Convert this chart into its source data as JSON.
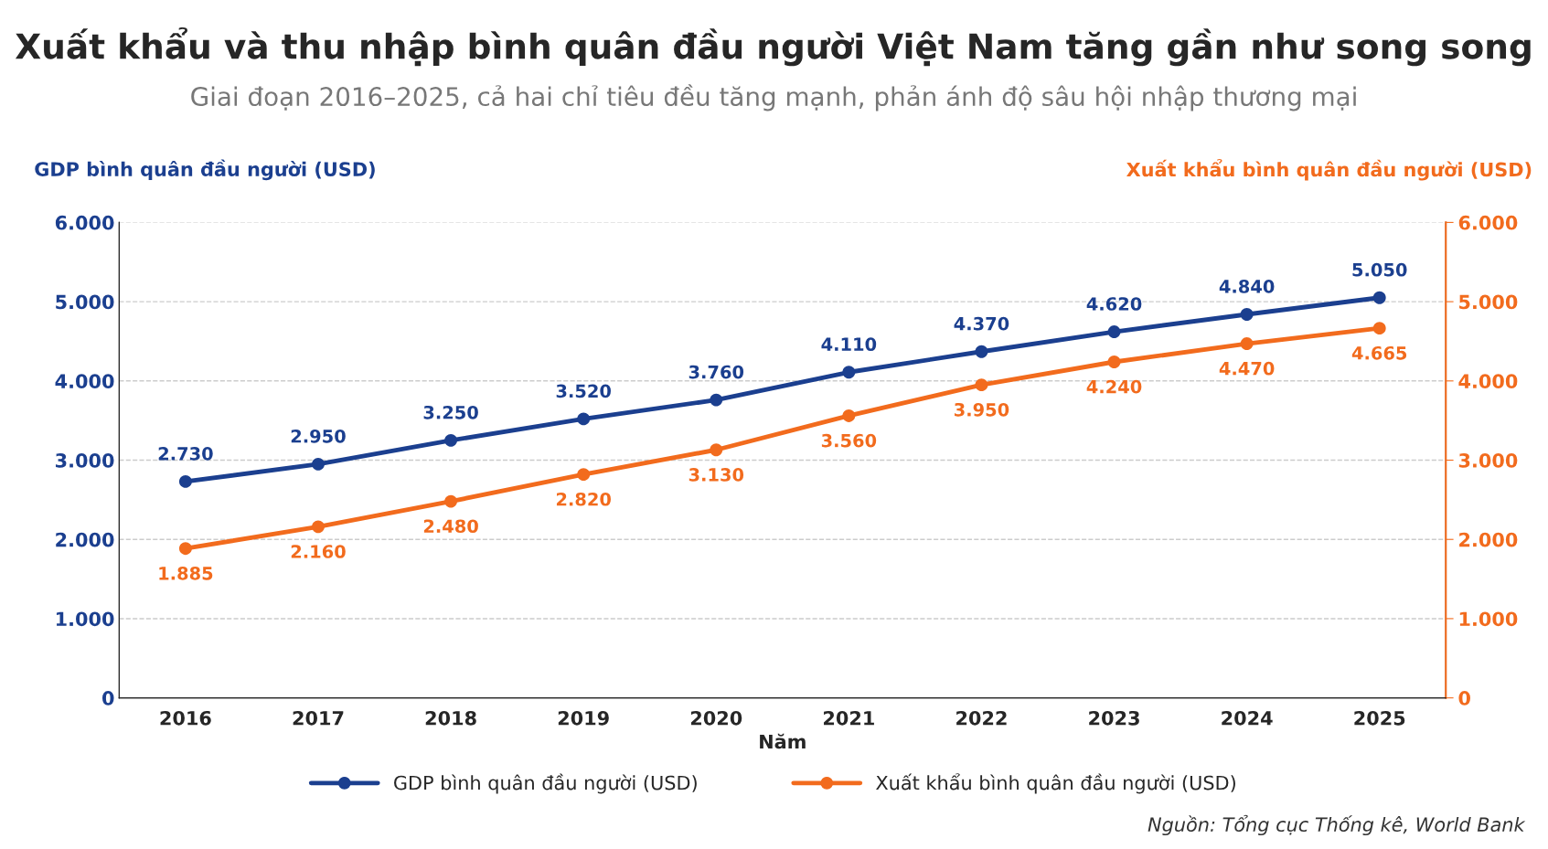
{
  "chart_data": {
    "type": "line",
    "title": "Xuất khẩu và thu nhập bình quân đầu người Việt Nam tăng gần như song song",
    "subtitle": "Giai đoạn 2016–2025, cả hai chỉ tiêu đều tăng mạnh, phản ánh độ sâu hội nhập thương mại",
    "xlabel": "Năm",
    "ylabel": "GDP bình quân đầu người (USD)",
    "y2label": "Xuất khẩu bình quân đầu người (USD)",
    "categories": [
      "2016",
      "2017",
      "2018",
      "2019",
      "2020",
      "2021",
      "2022",
      "2023",
      "2024",
      "2025"
    ],
    "series": [
      {
        "name": "GDP bình quân đầu người (USD)",
        "color": "#1b3f8f",
        "values": [
          2730,
          2950,
          3250,
          3520,
          3760,
          4110,
          4370,
          4620,
          4840,
          5050
        ],
        "value_labels": [
          "2.730",
          "2.950",
          "3.250",
          "3.520",
          "3.760",
          "4.110",
          "4.370",
          "4.620",
          "4.840",
          "5.050"
        ]
      },
      {
        "name": "Xuất khẩu bình quân đầu người (USD)",
        "color": "#f26b1d",
        "axis": "y2",
        "values": [
          1885,
          2160,
          2480,
          2820,
          3130,
          3560,
          3950,
          4240,
          4470,
          4665
        ],
        "value_labels": [
          "1.885",
          "2.160",
          "2.480",
          "2.820",
          "3.130",
          "3.560",
          "3.950",
          "4.240",
          "4.470",
          "4.665"
        ]
      }
    ],
    "ylim": [
      0,
      6000
    ],
    "yticks": [
      0,
      {
        "value": 1000,
        "label": "1.000"
      },
      {
        "value": 2000,
        "label": "2.000"
      },
      {
        "value": 3000,
        "label": "3.000"
      },
      {
        "value": 4000,
        "label": "4.000"
      },
      {
        "value": 5000,
        "label": "5.000"
      },
      {
        "value": 6000,
        "label": "6.000"
      }
    ],
    "y2lim": [
      0,
      6000
    ],
    "y2ticks": [
      0,
      {
        "value": 1000,
        "label": "1.000"
      },
      {
        "value": 2000,
        "label": "2.000"
      },
      {
        "value": 3000,
        "label": "3.000"
      },
      {
        "value": 4000,
        "label": "4.000"
      },
      {
        "value": 5000,
        "label": "5.000"
      },
      {
        "value": 6000,
        "label": "6.000"
      }
    ],
    "grid": "y",
    "legend": "bottom",
    "marker": "circle",
    "line_style": "solid",
    "annotations": [
      "Nguồn: Tổng cục Thống kê, World Bank"
    ]
  }
}
